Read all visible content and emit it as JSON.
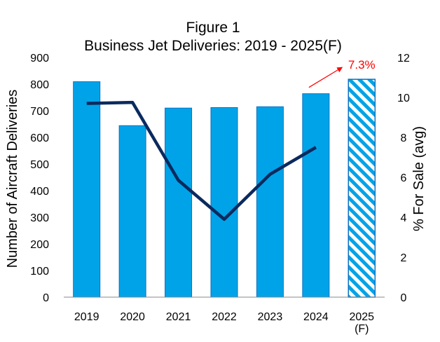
{
  "chart_data": {
    "type": "bar",
    "title": "Figure 1",
    "subtitle": "Business Jet Deliveries: 2019 - 2025(F)",
    "xlabel": "",
    "ylabel": "Number of Aircraft Deliveries",
    "y2label": "% For Sale (avg)",
    "categories": [
      {
        "line1": "2019",
        "line2": ""
      },
      {
        "line1": "2020",
        "line2": ""
      },
      {
        "line1": "2021",
        "line2": ""
      },
      {
        "line1": "2022",
        "line2": ""
      },
      {
        "line1": "2023",
        "line2": ""
      },
      {
        "line1": "2024",
        "line2": ""
      },
      {
        "line1": "2025",
        "line2": "(F)"
      }
    ],
    "ylim": [
      0,
      900
    ],
    "y_ticks": [
      "0",
      "100",
      "200",
      "300",
      "400",
      "500",
      "600",
      "700",
      "800",
      "900"
    ],
    "y2lim": [
      0,
      12
    ],
    "y2_ticks": [
      "0",
      "2",
      "4",
      "6",
      "8",
      "10",
      "12"
    ],
    "bars": {
      "values": [
        809,
        644,
        710,
        712,
        715,
        764,
        818
      ],
      "forecast": [
        false,
        false,
        false,
        false,
        false,
        false,
        true
      ],
      "color": "#00a3e8",
      "border_color": "#0a72c2"
    },
    "line": {
      "axis": "secondary",
      "values": [
        9.7,
        9.75,
        5.85,
        3.9,
        6.15,
        7.5,
        null
      ],
      "color": "#0b2a5e"
    },
    "annotation": {
      "text": "7.3%",
      "color": "#ff0000",
      "arrow_from_category": 5,
      "arrow_to_category": 6
    },
    "grid": false,
    "legend": "none"
  }
}
